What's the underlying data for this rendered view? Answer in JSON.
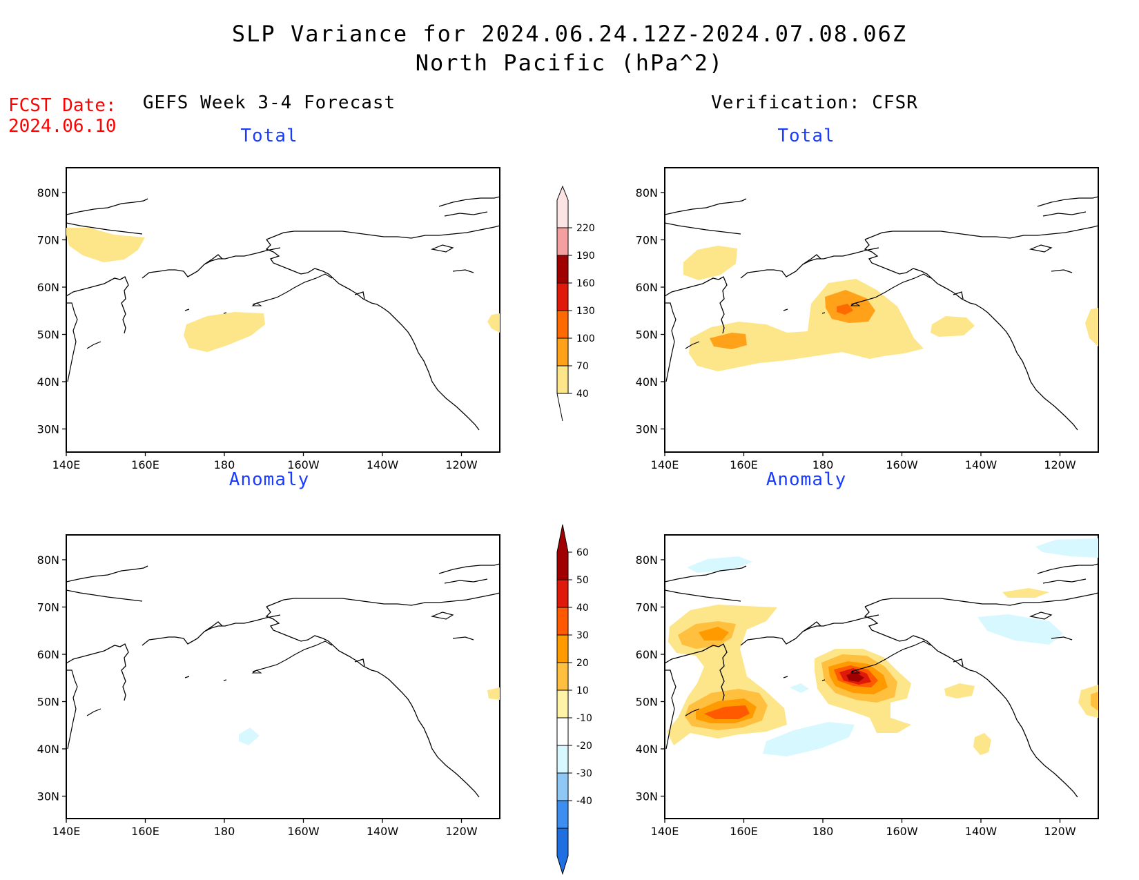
{
  "header": {
    "title_line1": "SLP Variance for 2024.06.24.12Z-2024.07.08.06Z",
    "title_line2": "North Pacific (hPa^2)",
    "fcst_label": "FCST Date:",
    "fcst_date": "2024.06.10"
  },
  "columns": {
    "left_title": "GEFS Week 3-4 Forecast",
    "right_title": "Verification: CFSR"
  },
  "panels": {
    "top_left_title": "Total",
    "top_right_title": "Total",
    "bottom_left_title": "Anomaly",
    "bottom_right_title": "Anomaly"
  },
  "axes": {
    "lon_labels": [
      "140E",
      "160E",
      "180",
      "160W",
      "140W",
      "120W"
    ],
    "lat_labels": [
      "80N",
      "70N",
      "60N",
      "50N",
      "40N",
      "30N"
    ]
  },
  "colorbars": {
    "total": {
      "labels": [
        "40",
        "70",
        "100",
        "130",
        "160",
        "190",
        "220"
      ],
      "colors": [
        "#fde58a",
        "#ffa21a",
        "#ff6a00",
        "#e01a0a",
        "#a00000",
        "#f4a0a0",
        "#fde4e4"
      ]
    },
    "anomaly": {
      "labels": [
        "-40",
        "-30",
        "-20",
        "-10",
        "10",
        "20",
        "30",
        "40",
        "50",
        "60"
      ],
      "colors": [
        "#1e6fe0",
        "#3c8ff0",
        "#8ec8f5",
        "#d8f8ff",
        "#ffffff",
        "#fff3a8",
        "#ffc040",
        "#ff9a00",
        "#ff5a00",
        "#e01a0a",
        "#a00000"
      ]
    }
  }
}
